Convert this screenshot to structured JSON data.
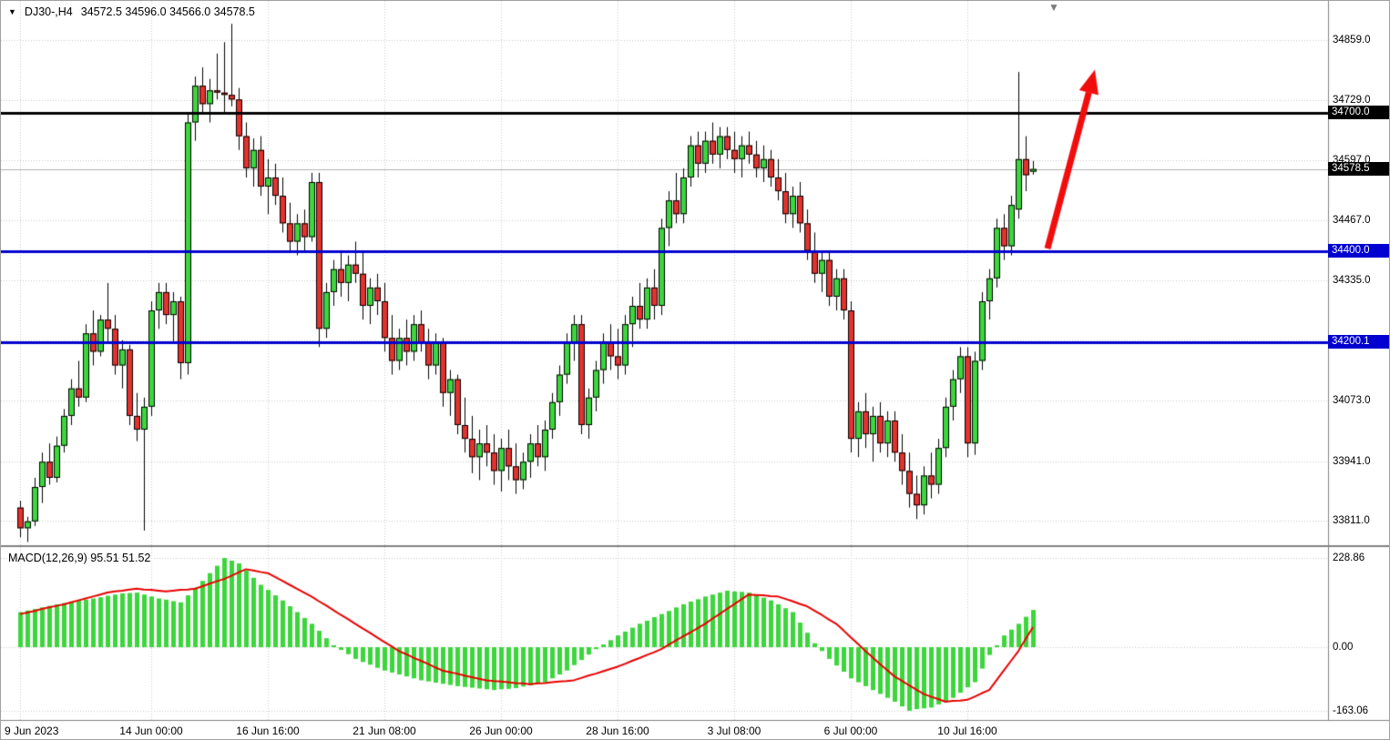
{
  "header": {
    "symbol_period": "DJ30-,H4",
    "ohlc": "34572.5 34596.0 34566.0 34578.5"
  },
  "macd_label": "MACD(12,26,9) 95.51 51.52",
  "icons": {
    "window_menu": "▼",
    "chart_shift_marker": "▼"
  },
  "colors": {
    "bull": "#3cd63c",
    "bear": "#e3322d",
    "outline": "#000000",
    "grid": "#c9c9c9",
    "hline_black": "#000000",
    "hline_blue": "#0000d0",
    "current_line": "#b0b0b0",
    "signal": "#e80000",
    "histogram": "#3cd63c",
    "arrow": "#f20d0d",
    "separator": "#808080",
    "badge_text": "#ffffff"
  },
  "chart_data": {
    "type": "candlestick",
    "symbol": "DJ30-",
    "timeframe": "H4",
    "current_bar": {
      "open": 34572.5,
      "high": 34596.0,
      "low": 34566.0,
      "close": 34578.5
    },
    "price_axis": {
      "range_top": 34945,
      "range_bottom": 33758,
      "visible_labels": [
        {
          "text": "34859.0",
          "value": 34859.0
        },
        {
          "text": "34729.0",
          "value": 34729.0
        },
        {
          "text": "34597.0",
          "value": 34597.0
        },
        {
          "text": "34467.0",
          "value": 34467.0
        },
        {
          "text": "34335.0",
          "value": 34335.0
        },
        {
          "text": "34073.0",
          "value": 34073.0
        },
        {
          "text": "33941.0",
          "value": 33941.0
        },
        {
          "text": "33811.0",
          "value": 33811.0
        }
      ],
      "gridline_prices": [
        34859,
        34729,
        34597,
        34467,
        34335,
        34204,
        34073,
        33941,
        33811
      ]
    },
    "time_axis": {
      "labels": [
        {
          "text": "9 Jun 2023",
          "bar": 0
        },
        {
          "text": "14 Jun 00:00",
          "bar": 18
        },
        {
          "text": "16 Jun 16:00",
          "bar": 34
        },
        {
          "text": "21 Jun 08:00",
          "bar": 50
        },
        {
          "text": "26 Jun 00:00",
          "bar": 66
        },
        {
          "text": "28 Jun 16:00",
          "bar": 82
        },
        {
          "text": "3 Jul 08:00",
          "bar": 98
        },
        {
          "text": "6 Jul 00:00",
          "bar": 114
        },
        {
          "text": "10 Jul 16:00",
          "bar": 130
        }
      ]
    },
    "hlines": [
      {
        "text": "34700.0",
        "value": 34700.0,
        "style": "black"
      },
      {
        "text": "34400.0",
        "value": 34400.0,
        "style": "blue"
      },
      {
        "text": "34200.1",
        "value": 34200.1,
        "style": "blue"
      }
    ],
    "current_price": {
      "text": "34578.5",
      "value": 34578.5
    },
    "arrow_annotation": {
      "from_bar": 141,
      "from_price": 34405,
      "to_bar": 147.5,
      "to_price": 34795
    },
    "candles": [
      [
        33840,
        33855,
        33775,
        33795
      ],
      [
        33795,
        33820,
        33765,
        33810
      ],
      [
        33810,
        33905,
        33800,
        33885
      ],
      [
        33885,
        33960,
        33850,
        33940
      ],
      [
        33940,
        33980,
        33890,
        33905
      ],
      [
        33905,
        33995,
        33895,
        33975
      ],
      [
        33975,
        34055,
        33960,
        34040
      ],
      [
        34040,
        34120,
        34020,
        34100
      ],
      [
        34100,
        34160,
        34060,
        34080
      ],
      [
        34080,
        34240,
        34070,
        34220
      ],
      [
        34220,
        34270,
        34150,
        34180
      ],
      [
        34180,
        34260,
        34170,
        34250
      ],
      [
        34250,
        34330,
        34200,
        34230
      ],
      [
        34230,
        34260,
        34130,
        34150
      ],
      [
        34150,
        34205,
        34100,
        34185
      ],
      [
        34185,
        34195,
        34020,
        34040
      ],
      [
        34040,
        34090,
        33985,
        34010
      ],
      [
        34010,
        34080,
        33790,
        34060
      ],
      [
        34060,
        34290,
        34040,
        34270
      ],
      [
        34270,
        34330,
        34230,
        34310
      ],
      [
        34310,
        34330,
        34240,
        34260
      ],
      [
        34260,
        34310,
        34200,
        34290
      ],
      [
        34290,
        34300,
        34120,
        34155
      ],
      [
        34155,
        34700,
        34130,
        34680
      ],
      [
        34680,
        34780,
        34640,
        34760
      ],
      [
        34760,
        34800,
        34700,
        34720
      ],
      [
        34720,
        34775,
        34680,
        34750
      ],
      [
        34750,
        34830,
        34730,
        34745
      ],
      [
        34745,
        34855,
        34700,
        34740
      ],
      [
        34740,
        34895,
        34715,
        34730
      ],
      [
        34730,
        34755,
        34620,
        34650
      ],
      [
        34650,
        34680,
        34560,
        34580
      ],
      [
        34580,
        34645,
        34540,
        34620
      ],
      [
        34620,
        34650,
        34520,
        34540
      ],
      [
        34540,
        34600,
        34480,
        34560
      ],
      [
        34560,
        34590,
        34500,
        34520
      ],
      [
        34520,
        34560,
        34440,
        34460
      ],
      [
        34460,
        34505,
        34400,
        34420
      ],
      [
        34420,
        34480,
        34390,
        34460
      ],
      [
        34460,
        34490,
        34400,
        34430
      ],
      [
        34430,
        34570,
        34420,
        34550
      ],
      [
        34550,
        34570,
        34190,
        34230
      ],
      [
        34230,
        34330,
        34210,
        34310
      ],
      [
        34310,
        34380,
        34280,
        34360
      ],
      [
        34360,
        34400,
        34300,
        34330
      ],
      [
        34330,
        34390,
        34290,
        34370
      ],
      [
        34370,
        34420,
        34330,
        34350
      ],
      [
        34350,
        34400,
        34250,
        34280
      ],
      [
        34280,
        34340,
        34240,
        34320
      ],
      [
        34320,
        34350,
        34260,
        34290
      ],
      [
        34290,
        34330,
        34180,
        34210
      ],
      [
        34210,
        34260,
        34130,
        34160
      ],
      [
        34160,
        34230,
        34140,
        34210
      ],
      [
        34210,
        34250,
        34150,
        34180
      ],
      [
        34180,
        34260,
        34160,
        34240
      ],
      [
        34240,
        34270,
        34180,
        34200
      ],
      [
        34200,
        34230,
        34120,
        34150
      ],
      [
        34150,
        34220,
        34130,
        34200
      ],
      [
        34200,
        34210,
        34060,
        34090
      ],
      [
        34090,
        34140,
        34040,
        34120
      ],
      [
        34120,
        34130,
        34000,
        34020
      ],
      [
        34020,
        34080,
        33960,
        33990
      ],
      [
        33990,
        34040,
        33915,
        33950
      ],
      [
        33950,
        34010,
        33900,
        33980
      ],
      [
        33980,
        34020,
        33930,
        33960
      ],
      [
        33960,
        34000,
        33890,
        33920
      ],
      [
        33920,
        33990,
        33875,
        33970
      ],
      [
        33970,
        34010,
        33900,
        33930
      ],
      [
        33930,
        33980,
        33870,
        33900
      ],
      [
        33900,
        33960,
        33880,
        33940
      ],
      [
        33940,
        34000,
        33905,
        33980
      ],
      [
        33980,
        34020,
        33930,
        33950
      ],
      [
        33950,
        34030,
        33920,
        34010
      ],
      [
        34010,
        34090,
        33990,
        34070
      ],
      [
        34070,
        34150,
        34040,
        34130
      ],
      [
        34130,
        34220,
        34110,
        34200
      ],
      [
        34200,
        34260,
        34160,
        34240
      ],
      [
        34240,
        34260,
        34000,
        34020
      ],
      [
        34020,
        34100,
        33990,
        34080
      ],
      [
        34080,
        34160,
        34050,
        34140
      ],
      [
        34140,
        34220,
        34110,
        34200
      ],
      [
        34200,
        34240,
        34140,
        34170
      ],
      [
        34170,
        34230,
        34120,
        34150
      ],
      [
        34150,
        34260,
        34130,
        34240
      ],
      [
        34240,
        34300,
        34190,
        34280
      ],
      [
        34280,
        34330,
        34230,
        34250
      ],
      [
        34250,
        34340,
        34230,
        34320
      ],
      [
        34320,
        34360,
        34250,
        34280
      ],
      [
        34280,
        34470,
        34260,
        34450
      ],
      [
        34450,
        34530,
        34410,
        34510
      ],
      [
        34510,
        34570,
        34460,
        34480
      ],
      [
        34480,
        34580,
        34460,
        34560
      ],
      [
        34560,
        34650,
        34540,
        34630
      ],
      [
        34630,
        34660,
        34560,
        34590
      ],
      [
        34590,
        34660,
        34570,
        34640
      ],
      [
        34640,
        34680,
        34590,
        34610
      ],
      [
        34610,
        34670,
        34580,
        34650
      ],
      [
        34650,
        34670,
        34600,
        34620
      ],
      [
        34620,
        34660,
        34570,
        34600
      ],
      [
        34600,
        34650,
        34560,
        34630
      ],
      [
        34630,
        34660,
        34590,
        34610
      ],
      [
        34610,
        34640,
        34560,
        34580
      ],
      [
        34580,
        34630,
        34550,
        34600
      ],
      [
        34600,
        34620,
        34540,
        34560
      ],
      [
        34560,
        34600,
        34510,
        34530
      ],
      [
        34530,
        34570,
        34460,
        34480
      ],
      [
        34480,
        34540,
        34450,
        34520
      ],
      [
        34520,
        34550,
        34440,
        34460
      ],
      [
        34460,
        34490,
        34380,
        34400
      ],
      [
        34400,
        34440,
        34330,
        34350
      ],
      [
        34350,
        34400,
        34310,
        34380
      ],
      [
        34380,
        34400,
        34280,
        34300
      ],
      [
        34300,
        34360,
        34270,
        34340
      ],
      [
        34340,
        34360,
        34250,
        34270
      ],
      [
        34270,
        34290,
        33960,
        33990
      ],
      [
        33990,
        34070,
        33950,
        34050
      ],
      [
        34050,
        34090,
        33970,
        34000
      ],
      [
        34000,
        34060,
        33940,
        34040
      ],
      [
        34040,
        34070,
        33960,
        33980
      ],
      [
        33980,
        34050,
        33950,
        34030
      ],
      [
        34030,
        34050,
        33940,
        33960
      ],
      [
        33960,
        34000,
        33890,
        33920
      ],
      [
        33920,
        33960,
        33840,
        33870
      ],
      [
        33870,
        33910,
        33815,
        33845
      ],
      [
        33845,
        33930,
        33825,
        33910
      ],
      [
        33910,
        33960,
        33860,
        33890
      ],
      [
        33890,
        33990,
        33870,
        33970
      ],
      [
        33970,
        34080,
        33950,
        34060
      ],
      [
        34060,
        34140,
        34030,
        34120
      ],
      [
        34120,
        34190,
        34090,
        34170
      ],
      [
        34170,
        34190,
        33950,
        33980
      ],
      [
        33980,
        34180,
        33955,
        34160
      ],
      [
        34160,
        34310,
        34140,
        34290
      ],
      [
        34290,
        34360,
        34250,
        34340
      ],
      [
        34340,
        34470,
        34320,
        34450
      ],
      [
        34450,
        34480,
        34380,
        34410
      ],
      [
        34410,
        34520,
        34390,
        34500
      ],
      [
        34490,
        34790,
        34470,
        34600
      ],
      [
        34600,
        34650,
        34530,
        34565
      ],
      [
        34572.5,
        34596.0,
        34566.0,
        34578.5
      ]
    ],
    "macd": {
      "name": "MACD",
      "params": "12,26,9",
      "value": 95.51,
      "signal_value": 51.52,
      "range_top": 254.6,
      "range_bottom": -186.8,
      "axis_labels": [
        {
          "text": "228.86",
          "value": 228.86
        },
        {
          "text": "0.00",
          "value": 0
        },
        {
          "text": "-163.06",
          "value": -163.06
        }
      ],
      "histogram": [
        90,
        94,
        98,
        102,
        106,
        110,
        113,
        116,
        119,
        122,
        125,
        128,
        132,
        135,
        138,
        139,
        140,
        135,
        130,
        125,
        122,
        118,
        115,
        133,
        152,
        170,
        190,
        209,
        228.9,
        222,
        215,
        197,
        178,
        160,
        147,
        133,
        120,
        105,
        90,
        75,
        60,
        42,
        23,
        5,
        -7,
        -18,
        -30,
        -38,
        -45,
        -53,
        -60,
        -65,
        -70,
        -75,
        -80,
        -85,
        -88,
        -91,
        -94,
        -97,
        -100,
        -102,
        -104,
        -106,
        -108,
        -110,
        -108,
        -107,
        -105,
        -101,
        -98,
        -94,
        -90,
        -80,
        -70,
        -60,
        -46,
        -33,
        -19,
        -5,
        7,
        18,
        30,
        40,
        50,
        60,
        68,
        77,
        85,
        93,
        102,
        110,
        117,
        123,
        130,
        135,
        140,
        145,
        143,
        142,
        140,
        133,
        127,
        120,
        110,
        100,
        90,
        63,
        37,
        10,
        -10,
        -30,
        -47,
        -63,
        -80,
        -90,
        -100,
        -110,
        -120,
        -130,
        -140,
        -152,
        -163.1,
        -159,
        -157,
        -155,
        -147,
        -138,
        -130,
        -117,
        -103,
        -90,
        -55,
        -20,
        5,
        30,
        45,
        60,
        78,
        95.5
      ],
      "signal": [
        85,
        89,
        93,
        98,
        102,
        106,
        110,
        115,
        120,
        125,
        130,
        135,
        140,
        143,
        145,
        148,
        150,
        148,
        147,
        145,
        143,
        145,
        147,
        148,
        150,
        156,
        163,
        169,
        175,
        183,
        192,
        200,
        197,
        193,
        190,
        180,
        170,
        160,
        150,
        140,
        130,
        118,
        107,
        95,
        83,
        72,
        60,
        48,
        37,
        25,
        13,
        2,
        -10,
        -18,
        -27,
        -35,
        -43,
        -52,
        -60,
        -64,
        -68,
        -73,
        -77,
        -81,
        -85,
        -87,
        -88,
        -90,
        -92,
        -93,
        -95,
        -93,
        -92,
        -90,
        -88,
        -87,
        -85,
        -79,
        -73,
        -68,
        -62,
        -56,
        -50,
        -43,
        -35,
        -28,
        -20,
        -13,
        -5,
        6,
        17,
        28,
        38,
        49,
        60,
        73,
        85,
        98,
        110,
        123,
        135,
        134,
        133,
        131,
        130,
        124,
        118,
        111,
        105,
        94,
        83,
        71,
        60,
        43,
        25,
        8,
        -10,
        -26,
        -43,
        -59,
        -75,
        -86,
        -98,
        -109,
        -120,
        -127,
        -133,
        -140,
        -138,
        -137,
        -135,
        -127,
        -118,
        -110,
        -85,
        -60,
        -35,
        -10,
        21,
        51.5
      ]
    }
  }
}
